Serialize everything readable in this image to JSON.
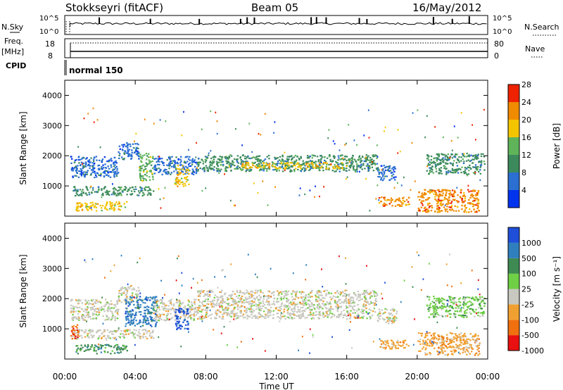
{
  "header": {
    "station": "Stokkseyri (fitACF)",
    "beam": "Beam 05",
    "date": "16/May/2012"
  },
  "aux_panels": {
    "nsky_label": "N.Sky",
    "nsearch_label": "N.Search",
    "noise_ticks": [
      "10^5",
      "10^0"
    ],
    "freq_label": "Freq.",
    "freq_unit": "[MHz]",
    "freq_ticks": [
      "18",
      "8"
    ],
    "nave_label": "Nave",
    "nave_ticks": [
      "80",
      "0"
    ],
    "cpid_label": "CPID",
    "cpid_value": "normal 150"
  },
  "chart_data": [
    {
      "type": "heatmap",
      "title": "",
      "ylabel": "Slant Range [km]",
      "yticks": [
        "1000",
        "2000",
        "3000",
        "4000"
      ],
      "ylim": [
        0,
        4500
      ],
      "colorbar": {
        "label": "Power [dB]",
        "ticks": [
          "4",
          "8",
          "12",
          "16",
          "20",
          "24",
          "28"
        ],
        "colors": [
          "#0033ee",
          "#2a6fd1",
          "#3c8a5c",
          "#5fb45a",
          "#f5c400",
          "#f08a00",
          "#ee2200"
        ]
      },
      "bands": [
        {
          "start": 0.3,
          "end": 3.0,
          "low": 1300,
          "high": 2000,
          "level": 1
        },
        {
          "start": 3.0,
          "end": 4.2,
          "low": 1900,
          "high": 2450,
          "level": 1
        },
        {
          "start": 4.2,
          "end": 5.0,
          "low": 1200,
          "high": 2100,
          "level": 3
        },
        {
          "start": 5.0,
          "end": 7.5,
          "low": 1400,
          "high": 2000,
          "level": 1
        },
        {
          "start": 7.5,
          "end": 17.7,
          "low": 1500,
          "high": 2050,
          "level": 2
        },
        {
          "start": 10.0,
          "end": 16.0,
          "low": 1600,
          "high": 1800,
          "level": 4
        },
        {
          "start": 17.7,
          "end": 18.8,
          "low": 1200,
          "high": 1700,
          "level": 1
        },
        {
          "start": 0.4,
          "end": 5.0,
          "low": 700,
          "high": 1000,
          "level": 2
        },
        {
          "start": 0.6,
          "end": 3.5,
          "low": 200,
          "high": 500,
          "level": 4
        },
        {
          "start": 17.8,
          "end": 19.5,
          "low": 350,
          "high": 650,
          "level": 5
        },
        {
          "start": 20.0,
          "end": 23.5,
          "low": 150,
          "high": 900,
          "level": 5
        },
        {
          "start": 20.5,
          "end": 23.8,
          "low": 1400,
          "high": 2100,
          "level": 2
        },
        {
          "start": 6.2,
          "end": 7.0,
          "low": 1000,
          "high": 1700,
          "level": 4
        }
      ]
    },
    {
      "type": "heatmap",
      "title": "",
      "ylabel": "Slant Range [km]",
      "yticks": [
        "1000",
        "2000",
        "3000",
        "4000"
      ],
      "ylim": [
        0,
        4500
      ],
      "colorbar": {
        "label": "Velocity [m s⁻¹]",
        "ticks": [
          "1000",
          "500",
          "100",
          "25",
          "-25",
          "-100",
          "-500",
          "-1000"
        ],
        "colors": [
          "#1f4fd8",
          "#2f7fbf",
          "#3e8a52",
          "#6fcf45",
          "#c8c8c0",
          "#f0a030",
          "#f07010",
          "#e81010"
        ]
      },
      "bands": [
        {
          "start": 0.3,
          "end": 3.0,
          "low": 1300,
          "high": 2000,
          "level": 4
        },
        {
          "start": 3.0,
          "end": 4.2,
          "low": 1900,
          "high": 2450,
          "level": 4
        },
        {
          "start": 3.4,
          "end": 5.2,
          "low": 1100,
          "high": 2100,
          "level": 1
        },
        {
          "start": 5.0,
          "end": 7.5,
          "low": 1300,
          "high": 2000,
          "level": 4
        },
        {
          "start": 7.5,
          "end": 17.7,
          "low": 1350,
          "high": 2300,
          "level": 4
        },
        {
          "start": 17.7,
          "end": 18.8,
          "low": 1200,
          "high": 1700,
          "level": 4
        },
        {
          "start": 0.4,
          "end": 5.0,
          "low": 700,
          "high": 1000,
          "level": 4
        },
        {
          "start": 0.3,
          "end": 0.8,
          "low": 700,
          "high": 1200,
          "level": 6
        },
        {
          "start": 0.6,
          "end": 3.5,
          "low": 200,
          "high": 500,
          "level": 2
        },
        {
          "start": 17.8,
          "end": 19.5,
          "low": 350,
          "high": 650,
          "level": 5
        },
        {
          "start": 20.0,
          "end": 23.5,
          "low": 150,
          "high": 900,
          "level": 5
        },
        {
          "start": 20.5,
          "end": 23.8,
          "low": 1400,
          "high": 2100,
          "level": 3
        },
        {
          "start": 6.2,
          "end": 7.0,
          "low": 1000,
          "high": 1700,
          "level": 0
        }
      ]
    }
  ],
  "time_axis": {
    "label": "Time UT",
    "ticks": [
      "00:00",
      "04:00",
      "08:00",
      "12:00",
      "16:00",
      "20:00",
      "00:00"
    ],
    "xlim_hours": [
      0,
      24
    ]
  }
}
